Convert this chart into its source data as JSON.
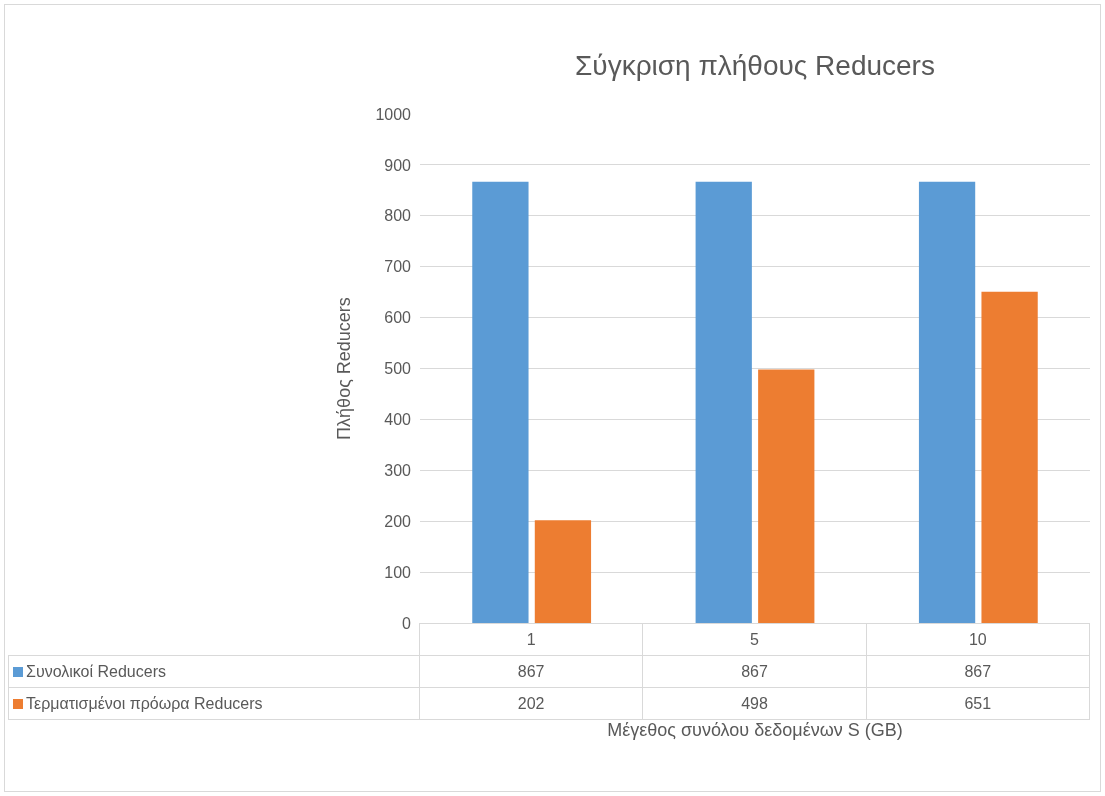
{
  "chart_data": {
    "type": "bar",
    "title": "Σύγκριση πλήθους Reducers",
    "xlabel": "Μέγεθος συνόλου δεδομένων S (GB)",
    "ylabel": "Πλήθος Reducers",
    "categories": [
      "1",
      "5",
      "10"
    ],
    "series": [
      {
        "name": "Συνολικοί Reducers",
        "color": "#5b9bd5",
        "values": [
          867,
          867,
          867
        ]
      },
      {
        "name": "Τερματισμένοι πρόωρα Reducers",
        "color": "#ed7d31",
        "values": [
          202,
          498,
          651
        ]
      }
    ],
    "ylim": [
      0,
      1000
    ],
    "yticks": [
      0,
      100,
      200,
      300,
      400,
      500,
      600,
      700,
      800,
      900,
      1000
    ],
    "grid": "y",
    "legend": "bottom",
    "data_labels": true
  }
}
